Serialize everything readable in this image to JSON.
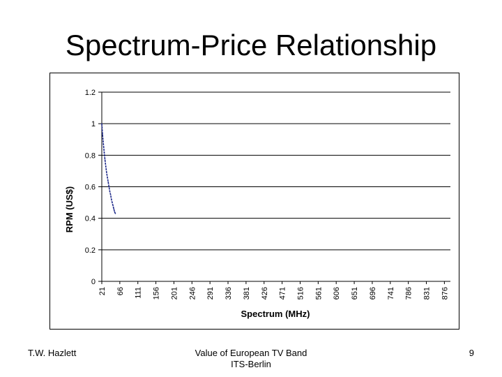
{
  "slide": {
    "title": "Spectrum-Price Relationship",
    "footer_left": "T.W. Hazlett",
    "footer_center_line1": "Value of European TV Band",
    "footer_center_line2": "ITS-Berlin",
    "page_number": "9"
  },
  "chart_data": {
    "type": "line",
    "title": "",
    "xlabel": "Spectrum (MHz)",
    "ylabel": "RPM (US$)",
    "ylim": [
      0,
      1.2
    ],
    "yticks": [
      "0",
      "0.2",
      "0.4",
      "0.6",
      "0.8",
      "1",
      "1.2"
    ],
    "xlim": [
      21,
      891
    ],
    "xticks": [
      "21",
      "66",
      "111",
      "156",
      "201",
      "246",
      "291",
      "336",
      "381",
      "426",
      "471",
      "516",
      "561",
      "606",
      "651",
      "696",
      "741",
      "786",
      "831",
      "876"
    ],
    "grid": "horizontal",
    "legend": "none",
    "series": [
      {
        "color": "#1f2a8a",
        "x": [
          21,
          23,
          25,
          27,
          29,
          31,
          33,
          35,
          37,
          39,
          41,
          43,
          45,
          47,
          49,
          51,
          53,
          55
        ],
        "values": [
          1.0,
          0.93,
          0.87,
          0.82,
          0.77,
          0.73,
          0.69,
          0.66,
          0.63,
          0.6,
          0.57,
          0.55,
          0.52,
          0.5,
          0.48,
          0.46,
          0.44,
          0.43
        ]
      }
    ]
  }
}
